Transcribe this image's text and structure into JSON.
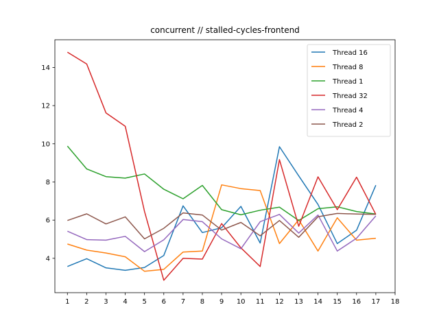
{
  "chart_data": {
    "type": "line",
    "title": "concurrent // stalled-cycles-frontend",
    "xlabel": "",
    "ylabel": "",
    "xlim": [
      0.35,
      18
    ],
    "ylim": [
      2.2,
      15.45
    ],
    "xticks": [
      1,
      2,
      3,
      4,
      5,
      6,
      7,
      8,
      9,
      10,
      11,
      12,
      13,
      14,
      15,
      16,
      17,
      18
    ],
    "yticks": [
      4,
      6,
      8,
      10,
      12,
      14
    ],
    "grid": false,
    "legend_position": "top-right",
    "x": [
      1,
      2,
      3,
      4,
      5,
      6,
      7,
      8,
      9,
      10,
      11,
      12,
      13,
      14,
      15,
      16,
      17
    ],
    "series": [
      {
        "name": "Thread 16",
        "color": "#1f77b4",
        "values": [
          3.57,
          3.98,
          3.5,
          3.37,
          3.52,
          4.15,
          6.75,
          5.35,
          5.6,
          6.72,
          4.8,
          9.85,
          8.32,
          6.82,
          4.77,
          5.47,
          7.83
        ]
      },
      {
        "name": "Thread 8",
        "color": "#ff7f0e",
        "values": [
          4.75,
          4.43,
          4.28,
          4.08,
          3.32,
          3.42,
          4.33,
          4.38,
          7.85,
          7.65,
          7.55,
          4.77,
          6.02,
          4.38,
          6.12,
          4.95,
          5.05
        ]
      },
      {
        "name": "Thread 1",
        "color": "#2ca02c",
        "values": [
          9.88,
          8.68,
          8.28,
          8.2,
          8.42,
          7.62,
          7.12,
          7.82,
          6.55,
          6.28,
          6.52,
          6.68,
          5.98,
          6.6,
          6.7,
          6.45,
          6.32
        ]
      },
      {
        "name": "Thread 32",
        "color": "#d62728",
        "values": [
          14.8,
          14.18,
          11.62,
          10.92,
          6.45,
          2.85,
          4.0,
          3.96,
          5.82,
          4.55,
          3.57,
          9.17,
          5.68,
          8.27,
          6.55,
          8.25,
          6.3
        ]
      },
      {
        "name": "Thread 4",
        "color": "#9467bd",
        "values": [
          5.42,
          4.98,
          4.95,
          5.15,
          4.35,
          4.97,
          6.03,
          5.92,
          5.02,
          4.5,
          5.92,
          6.3,
          5.32,
          6.27,
          4.38,
          5.05,
          6.22
        ]
      },
      {
        "name": "Thread 2",
        "color": "#8c564b",
        "values": [
          5.98,
          6.33,
          5.8,
          6.17,
          5.02,
          5.57,
          6.38,
          6.27,
          5.48,
          5.88,
          5.18,
          5.98,
          5.1,
          6.18,
          6.35,
          6.32,
          6.3
        ]
      }
    ]
  }
}
